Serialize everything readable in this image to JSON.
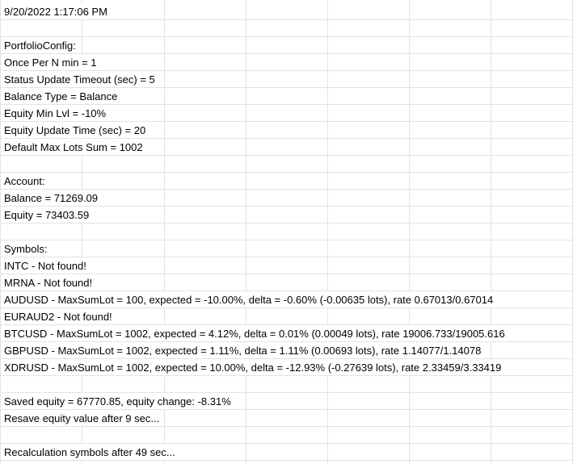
{
  "sheet": {
    "rows": [
      "9/20/2022 1:17:06 PM",
      "",
      "PortfolioConfig:",
      "Once Per N min = 1",
      "Status Update Timeout (sec) = 5",
      "Balance Type = Balance",
      "Equity Min Lvl = -10%",
      "Equity Update Time (sec) = 20",
      "Default Max Lots Sum = 1002",
      "",
      "Account:",
      "Balance = 71269.09",
      "Equity = 73403.59",
      "",
      "Symbols:",
      "INTC - Not found!",
      "MRNA - Not found!",
      "AUDUSD - MaxSumLot = 100, expected = -10.00%, delta = -0.60% (-0.00635 lots), rate 0.67013/0.67014",
      "EURAUD2 - Not found!",
      "BTCUSD - MaxSumLot = 1002, expected = 4.12%, delta = 0.01% (0.00049 lots), rate 19006.733/19005.616",
      "GBPUSD - MaxSumLot = 1002, expected = 1.11%, delta = 1.11% (0.00693 lots), rate 1.14077/1.14078",
      "XDRUSD - MaxSumLot = 1002, expected = 10.00%, delta = -12.93% (-0.27639 lots), rate 2.33459/3.33419",
      "",
      "Saved equity = 67770.85, equity change: -8.31%",
      "Resave equity value after 9 sec...",
      "",
      "Recalculation symbols after 49 sec...",
      ""
    ]
  }
}
